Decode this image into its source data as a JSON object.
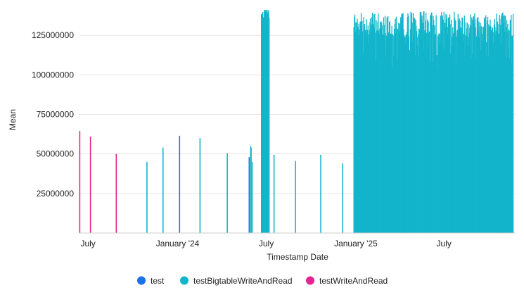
{
  "chart_data": {
    "type": "bar",
    "xlabel": "Timestamp Date",
    "ylabel": "Mean",
    "ylim": [
      0,
      142000000
    ],
    "y_ticks": [
      25000000,
      50000000,
      75000000,
      100000000,
      125000000
    ],
    "y_tick_labels": [
      "25000000",
      "50000000",
      "75000000",
      "100000000",
      "125000000"
    ],
    "x_range": [
      "2023-06-12",
      "2025-11-25"
    ],
    "x_ticks": [
      {
        "date": "2023-07-01",
        "label": "July"
      },
      {
        "date": "2024-01-01",
        "label": "January '24"
      },
      {
        "date": "2024-07-01",
        "label": "July"
      },
      {
        "date": "2025-01-01",
        "label": "January '25"
      },
      {
        "date": "2025-07-01",
        "label": "July"
      }
    ],
    "grid": true,
    "legend_position": "bottom",
    "series": [
      {
        "name": "test",
        "color": "#1a73e8",
        "points": [
          {
            "x": "2024-01-05",
            "y": 61500000
          },
          {
            "x": "2024-05-27",
            "y": 48000000
          }
        ]
      },
      {
        "name": "testBigtableWriteAndRead",
        "color": "#12b5cb",
        "points": [
          {
            "x": "2023-10-30",
            "y": 45000000
          },
          {
            "x": "2023-12-02",
            "y": 54000000
          },
          {
            "x": "2024-02-16",
            "y": 60000000
          },
          {
            "x": "2024-04-12",
            "y": 50500000
          },
          {
            "x": "2024-05-30",
            "y": 55000000
          },
          {
            "x": "2024-05-31",
            "y": 54000000
          },
          {
            "x": "2024-06-02",
            "y": 45000000
          },
          {
            "x": "2024-07-17",
            "y": 49500000
          },
          {
            "x": "2024-08-30",
            "y": 45500000
          },
          {
            "x": "2024-10-21",
            "y": 49500000
          },
          {
            "x": "2024-12-05",
            "y": 44000000
          }
        ],
        "dense_ranges": [
          {
            "start": "2024-06-21",
            "end": "2024-07-07",
            "y_min": 125000000,
            "y_max": 141000000
          },
          {
            "start": "2024-12-28",
            "end": "2025-11-20",
            "y_min": 90000000,
            "y_max": 142000000
          }
        ]
      },
      {
        "name": "testWriteAndRead",
        "color": "#e52592",
        "points": [
          {
            "x": "2023-06-14",
            "y": 64500000
          },
          {
            "x": "2023-07-06",
            "y": 61000000
          },
          {
            "x": "2023-08-28",
            "y": 50000000
          }
        ]
      }
    ]
  }
}
